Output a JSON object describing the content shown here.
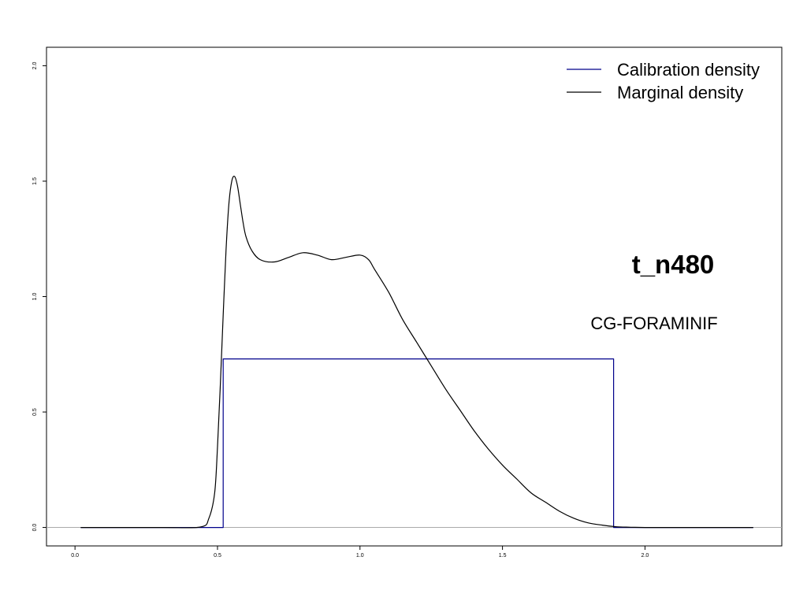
{
  "chart_data": {
    "type": "line",
    "xlim": [
      -0.1,
      2.48
    ],
    "ylim": [
      -0.08,
      2.08
    ],
    "x_ticks": [
      0.0,
      0.5,
      1.0,
      1.5,
      2.0
    ],
    "x_tick_labels": [
      "0.0",
      "0.5",
      "1.0",
      "1.5",
      "2.0"
    ],
    "y_ticks": [
      0.0,
      0.5,
      1.0,
      1.5,
      2.0
    ],
    "y_tick_labels": [
      "0.0",
      "0.5",
      "1.0",
      "1.5",
      "2.0"
    ],
    "grid": false,
    "legend_placement": "top-right",
    "baseline": {
      "y": 0.0,
      "color": "#aaaaaa"
    },
    "annotations": {
      "title": "t_n480",
      "subtitle": "CG-FORAMINIF"
    },
    "series": [
      {
        "name": "Calibration density",
        "color": "#00008b",
        "shape": "step",
        "x": [
          0.02,
          0.52,
          0.52,
          1.89,
          1.89,
          2.38
        ],
        "y": [
          0.0,
          0.0,
          0.73,
          0.73,
          0.0,
          0.0
        ]
      },
      {
        "name": "Marginal density",
        "color": "#000000",
        "shape": "smooth",
        "x": [
          0.02,
          0.3,
          0.44,
          0.47,
          0.49,
          0.5,
          0.51,
          0.52,
          0.53,
          0.54,
          0.55,
          0.56,
          0.57,
          0.58,
          0.59,
          0.6,
          0.62,
          0.65,
          0.7,
          0.75,
          0.8,
          0.85,
          0.9,
          0.95,
          1.0,
          1.03,
          1.05,
          1.1,
          1.15,
          1.2,
          1.25,
          1.3,
          1.35,
          1.4,
          1.45,
          1.5,
          1.55,
          1.6,
          1.65,
          1.7,
          1.75,
          1.8,
          1.85,
          1.9,
          1.95,
          2.0,
          2.1,
          2.38
        ],
        "y": [
          0.0,
          0.0,
          0.002,
          0.04,
          0.15,
          0.35,
          0.62,
          0.92,
          1.2,
          1.4,
          1.5,
          1.52,
          1.48,
          1.4,
          1.32,
          1.26,
          1.2,
          1.16,
          1.15,
          1.17,
          1.19,
          1.18,
          1.16,
          1.17,
          1.18,
          1.16,
          1.12,
          1.02,
          0.9,
          0.8,
          0.7,
          0.6,
          0.51,
          0.42,
          0.34,
          0.27,
          0.21,
          0.15,
          0.11,
          0.07,
          0.04,
          0.02,
          0.01,
          0.003,
          0.001,
          0.0,
          0.0,
          0.0
        ]
      }
    ]
  }
}
